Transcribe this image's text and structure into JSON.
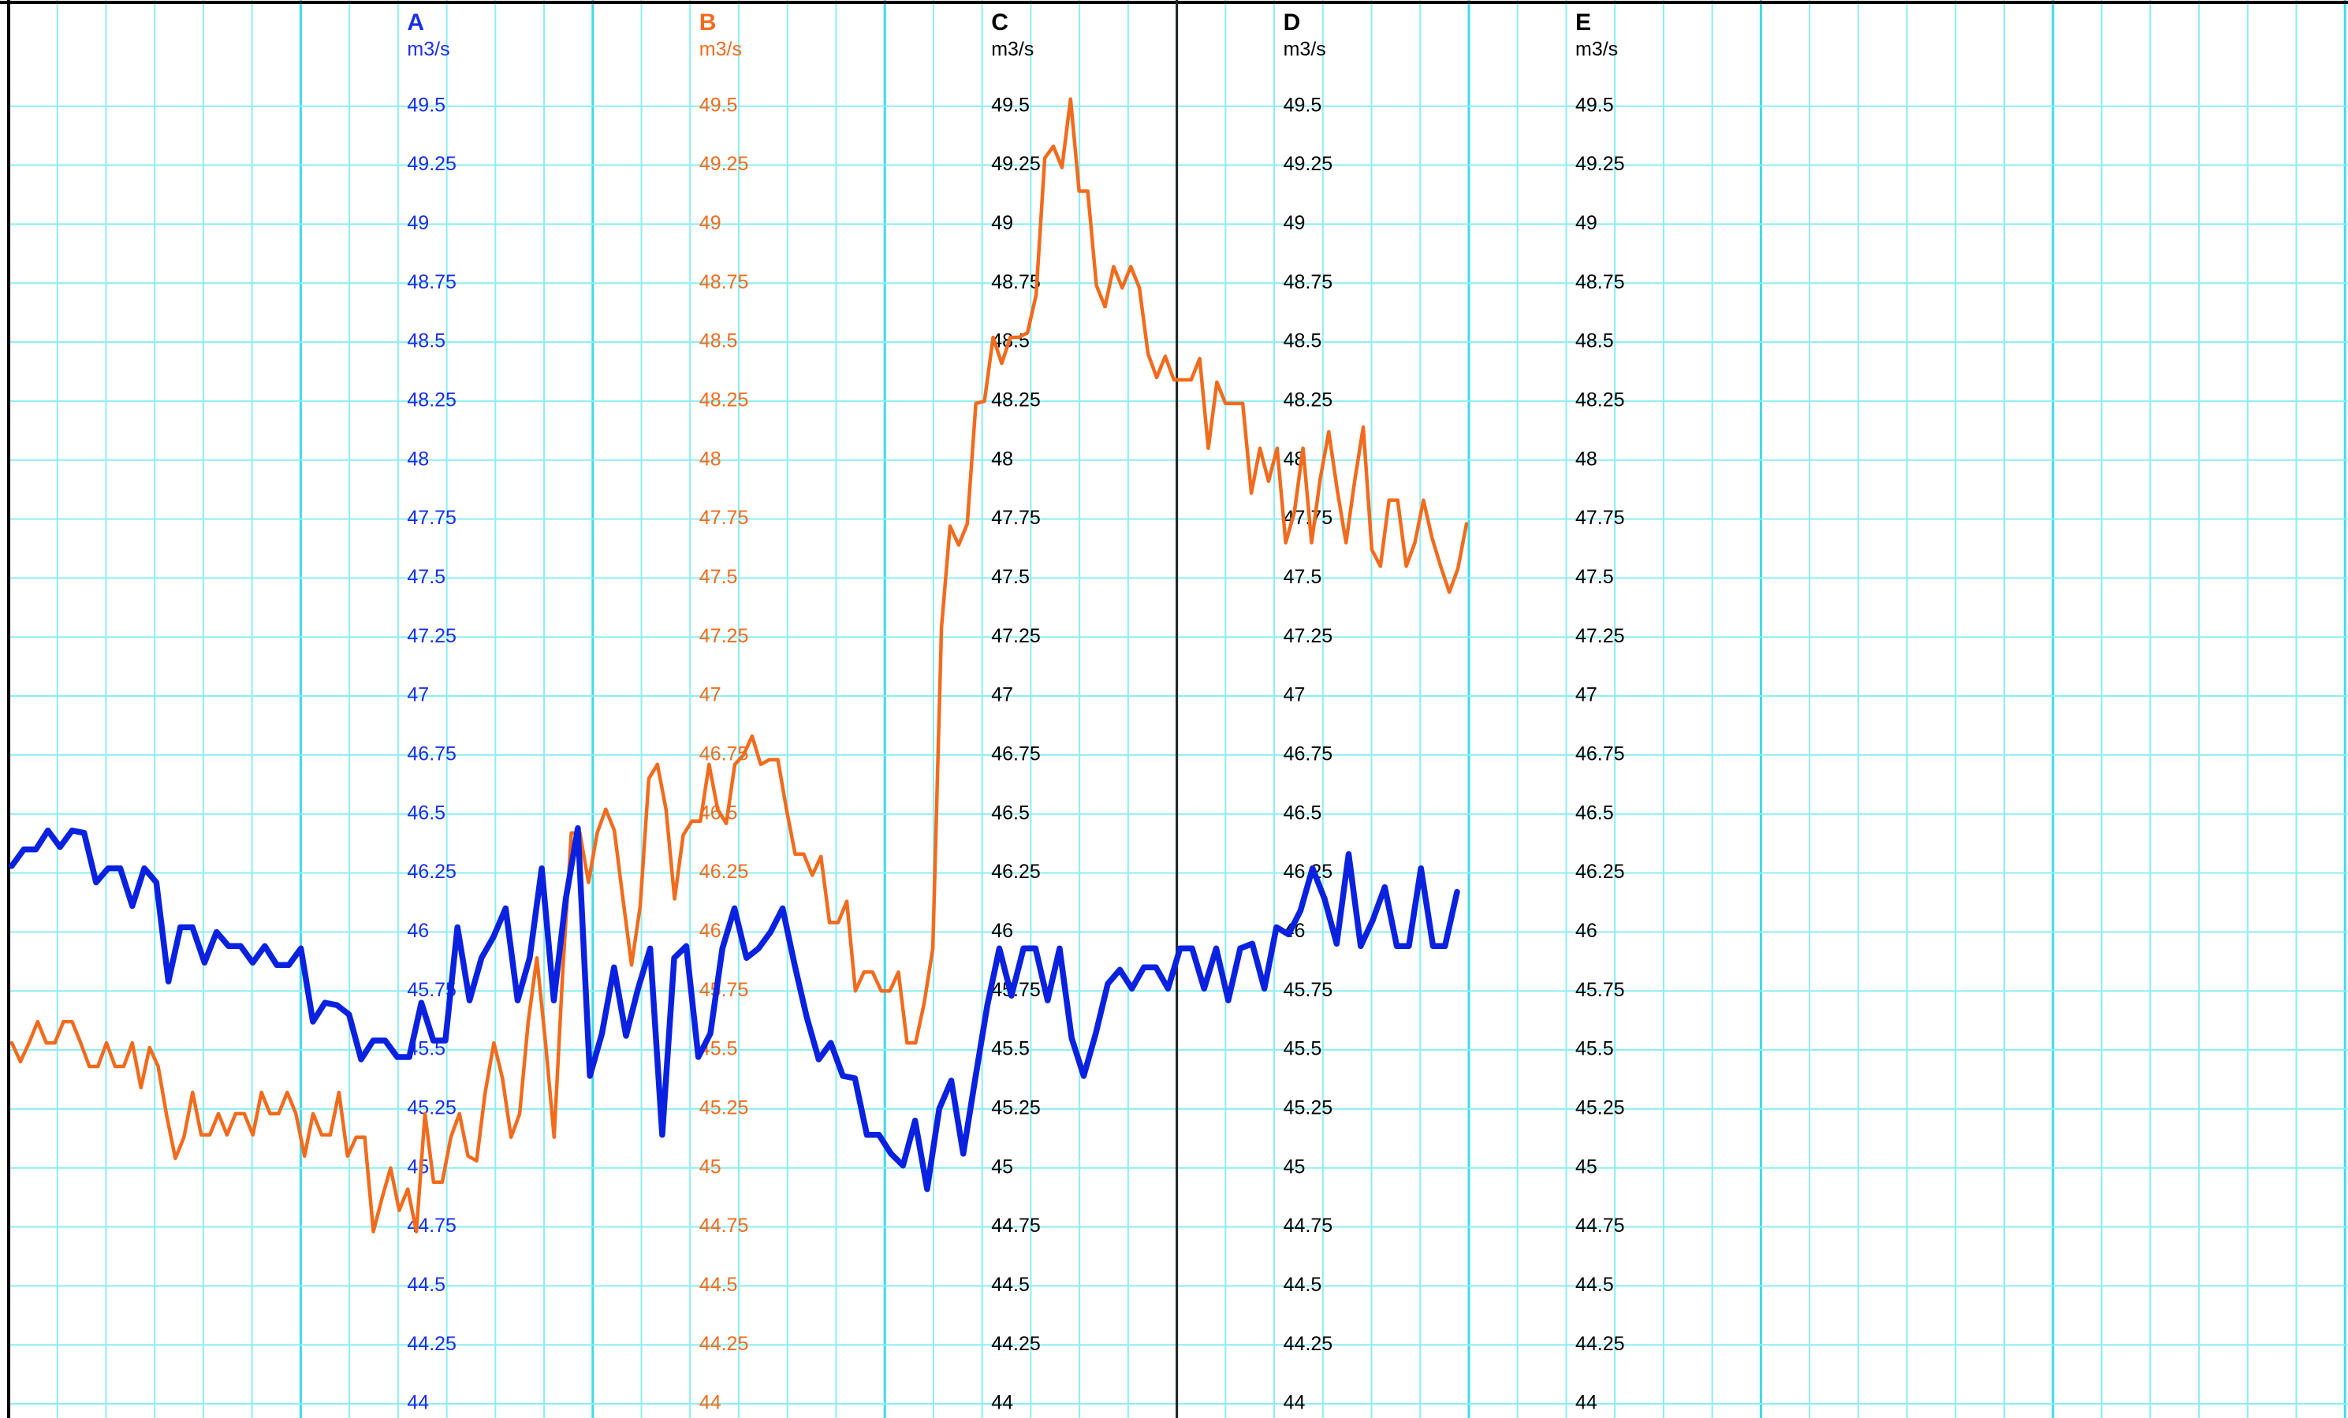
{
  "chart_data": {
    "type": "line",
    "axes": [
      {
        "name": "A",
        "unit": "m3/s",
        "color": "#1a2ee6"
      },
      {
        "name": "B",
        "unit": "m3/s",
        "color": "#f26b1d"
      },
      {
        "name": "C",
        "unit": "m3/s",
        "color": "#000000"
      },
      {
        "name": "D",
        "unit": "m3/s",
        "color": "#000000"
      },
      {
        "name": "E",
        "unit": "m3/s",
        "color": "#000000"
      }
    ],
    "ylim": [
      43.94,
      49.95
    ],
    "yticks": [
      44,
      44.25,
      44.5,
      44.75,
      45,
      45.25,
      45.5,
      45.75,
      46,
      46.25,
      46.5,
      46.75,
      47,
      47.25,
      47.5,
      47.75,
      48,
      48.25,
      48.5,
      48.75,
      49,
      49.25,
      49.5
    ],
    "grid": true,
    "series": [
      {
        "color": "#0a22e0",
        "values": [
          46.28,
          46.35,
          46.35,
          46.43,
          46.36,
          46.43,
          46.42,
          46.21,
          46.27,
          46.27,
          46.11,
          46.27,
          46.21,
          45.79,
          46.02,
          46.02,
          45.87,
          46.0,
          45.94,
          45.94,
          45.87,
          45.94,
          45.86,
          45.86,
          45.93,
          45.62,
          45.7,
          45.69,
          45.65,
          45.46,
          45.54,
          45.54,
          45.47,
          45.47,
          45.7,
          45.54,
          45.54,
          46.02,
          45.71,
          45.89,
          45.98,
          46.1,
          45.71,
          45.89,
          46.27,
          45.71,
          46.14,
          46.44,
          45.39,
          45.57,
          45.85,
          45.56,
          45.76,
          45.93,
          45.14,
          45.89,
          45.94,
          45.47,
          45.57,
          45.93,
          46.1,
          45.89,
          45.93,
          46.0,
          46.1,
          45.86,
          45.64,
          45.46,
          45.53,
          45.39,
          45.38,
          45.14,
          45.14,
          45.06,
          45.01,
          45.2,
          44.91,
          45.25,
          45.37,
          45.06,
          45.38,
          45.69,
          45.93,
          45.73,
          45.93,
          45.93,
          45.71,
          45.93,
          45.55,
          45.39,
          45.57,
          45.78,
          45.84,
          45.76,
          45.85,
          45.85,
          45.76,
          45.93,
          45.93,
          45.76,
          45.93,
          45.71,
          45.93,
          45.95,
          45.76,
          46.02,
          45.99,
          46.09,
          46.27,
          46.14,
          45.95,
          46.33,
          45.94,
          46.05,
          46.19,
          45.94,
          45.94,
          46.27,
          45.94,
          45.94,
          46.17
        ]
      },
      {
        "color": "#f26b1d",
        "values": [
          45.53,
          45.45,
          45.53,
          45.62,
          45.53,
          45.53,
          45.62,
          45.62,
          45.53,
          45.43,
          45.43,
          45.53,
          45.43,
          45.43,
          45.53,
          45.34,
          45.51,
          45.43,
          45.22,
          45.04,
          45.13,
          45.32,
          45.14,
          45.14,
          45.23,
          45.14,
          45.23,
          45.23,
          45.14,
          45.32,
          45.23,
          45.23,
          45.32,
          45.23,
          45.05,
          45.23,
          45.14,
          45.14,
          45.32,
          45.05,
          45.13,
          45.13,
          44.73,
          44.87,
          45.0,
          44.82,
          44.91,
          44.73,
          45.23,
          44.94,
          44.94,
          45.13,
          45.23,
          45.05,
          45.03,
          45.32,
          45.53,
          45.38,
          45.13,
          45.23,
          45.62,
          45.89,
          45.53,
          45.13,
          45.83,
          46.42,
          46.42,
          46.21,
          46.42,
          46.52,
          46.43,
          46.14,
          45.86,
          46.11,
          46.65,
          46.71,
          46.52,
          46.14,
          46.41,
          46.47,
          46.47,
          46.71,
          46.52,
          46.46,
          46.71,
          46.75,
          46.83,
          46.71,
          46.73,
          46.73,
          46.52,
          46.33,
          46.33,
          46.24,
          46.32,
          46.04,
          46.04,
          46.13,
          45.75,
          45.83,
          45.83,
          45.75,
          45.75,
          45.83,
          45.53,
          45.53,
          45.7,
          45.93,
          47.29,
          47.72,
          47.64,
          47.73,
          48.24,
          48.25,
          48.52,
          48.41,
          48.52,
          48.52,
          48.54,
          48.7,
          49.28,
          49.33,
          49.24,
          49.53,
          49.14,
          49.14,
          48.74,
          48.65,
          48.82,
          48.73,
          48.82,
          48.73,
          48.45,
          48.35,
          48.44,
          48.34,
          48.34,
          48.34,
          48.43,
          48.05,
          48.33,
          48.24,
          48.24,
          48.24,
          47.86,
          48.05,
          47.91,
          48.05,
          47.65,
          47.78,
          48.05,
          47.65,
          47.92,
          48.12,
          47.87,
          47.65,
          47.91,
          48.14,
          47.62,
          47.55,
          47.83,
          47.83,
          47.55,
          47.65,
          47.83,
          47.67,
          47.55,
          47.44,
          47.54,
          47.73
        ]
      }
    ]
  }
}
